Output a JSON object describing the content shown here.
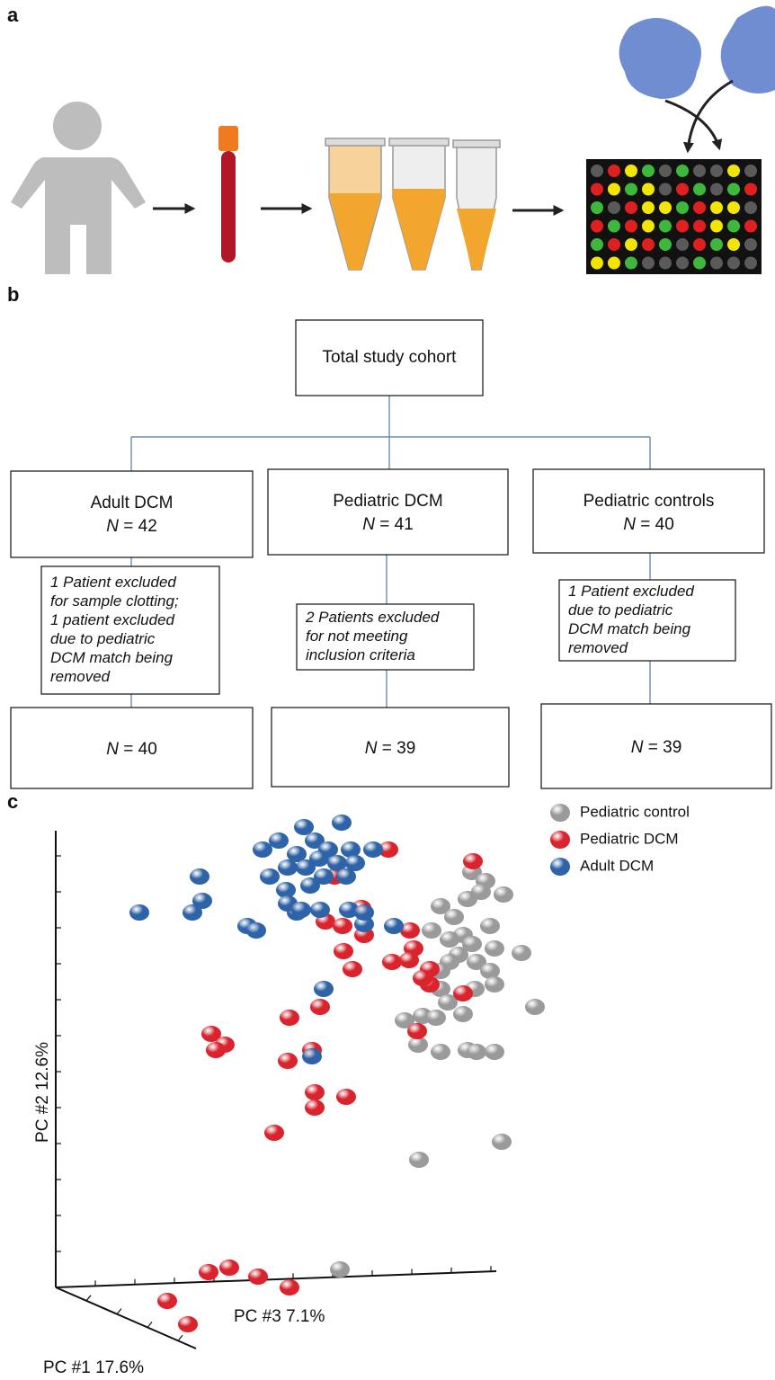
{
  "panels": {
    "a": {
      "label": "a"
    },
    "b": {
      "label": "b",
      "root": "Total study cohort",
      "groups": [
        {
          "name": "Adult DCM",
          "n": {
            "symbol": "N",
            "rest": " = 42"
          },
          "exclusion": [
            "1 Patient excluded",
            "for sample clotting;",
            "1 patient excluded",
            "due to pediatric",
            "DCM match being",
            "removed"
          ],
          "final": {
            "symbol": "N",
            "rest": " = 40"
          }
        },
        {
          "name": "Pediatric DCM",
          "n": {
            "symbol": "N",
            "rest": " = 41"
          },
          "exclusion": [
            "2 Patients excluded",
            "for not meeting",
            "inclusion criteria"
          ],
          "final": {
            "symbol": "N",
            "rest": " = 39"
          }
        },
        {
          "name": "Pediatric controls",
          "n": {
            "symbol": "N",
            "rest": " = 40"
          },
          "exclusion": [
            "1 Patient excluded",
            "due to pediatric",
            "DCM match being",
            "removed"
          ],
          "final": {
            "symbol": "N",
            "rest": " = 39"
          }
        }
      ]
    },
    "c": {
      "label": "c",
      "legend": [
        {
          "name": "Pediatric control",
          "color": "#9a9a9a"
        },
        {
          "name": "Pediatric DCM",
          "color": "#d9232d"
        },
        {
          "name": "Adult DCM",
          "color": "#2e63a8"
        }
      ],
      "axis_labels": {
        "y": "PC #2 12.6%",
        "x": "PC #3 7.1%",
        "z": "PC #1 17.6%"
      }
    }
  }
}
